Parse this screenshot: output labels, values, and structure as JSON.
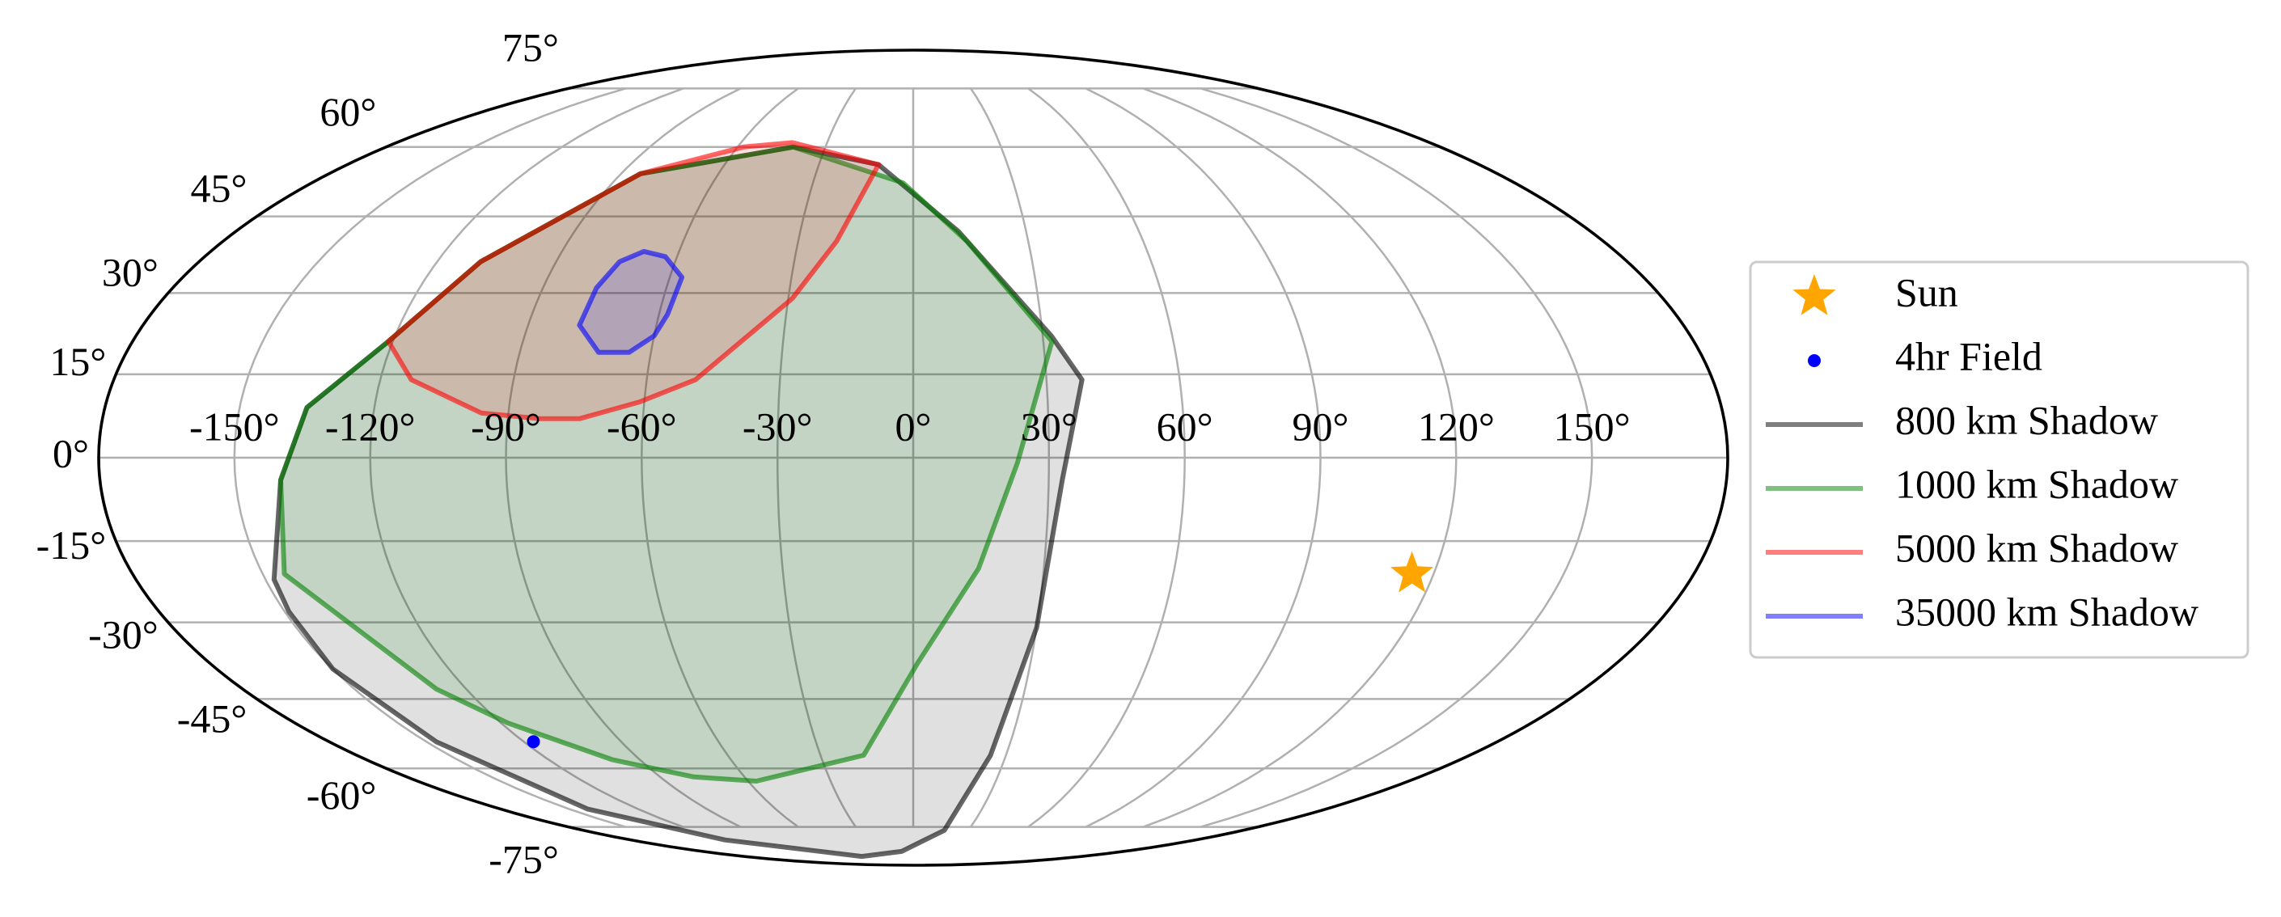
{
  "chart_data": {
    "type": "mollweide",
    "xticks": [
      {
        "value": -150,
        "label": "-150°"
      },
      {
        "value": -120,
        "label": "-120°"
      },
      {
        "value": -90,
        "label": "-90°"
      },
      {
        "value": -60,
        "label": "-60°"
      },
      {
        "value": -30,
        "label": "-30°"
      },
      {
        "value": 0,
        "label": "0°"
      },
      {
        "value": 30,
        "label": "30°"
      },
      {
        "value": 60,
        "label": "60°"
      },
      {
        "value": 90,
        "label": "90°"
      },
      {
        "value": 120,
        "label": "120°"
      },
      {
        "value": 150,
        "label": "150°"
      }
    ],
    "yticks": [
      {
        "value": -75,
        "label": "-75°"
      },
      {
        "value": -60,
        "label": "-60°"
      },
      {
        "value": -45,
        "label": "-45°"
      },
      {
        "value": -30,
        "label": "-30°"
      },
      {
        "value": -15,
        "label": "-15°"
      },
      {
        "value": 0,
        "label": "0°"
      },
      {
        "value": 15,
        "label": "15°"
      },
      {
        "value": 30,
        "label": "30°"
      },
      {
        "value": 45,
        "label": "45°"
      },
      {
        "value": 60,
        "label": "60°"
      },
      {
        "value": 75,
        "label": "75°"
      }
    ],
    "grid": true,
    "legend": "right",
    "series": [
      {
        "name": "Sun",
        "color": "orange",
        "marker": "star",
        "x": [
          115
        ],
        "y": [
          -21
        ]
      },
      {
        "name": "4hr Field",
        "color": "blue",
        "marker": "dot",
        "x": [
          -117
        ],
        "y": [
          -54
        ]
      },
      {
        "name": "800 km Shadow",
        "color": "black",
        "x": [
          -121,
          -109,
          -84,
          -41,
          -11,
          12,
          32,
          38,
          33,
          30,
          25,
          17,
          -10,
          -55,
          -120,
          -142,
          -147,
          -150,
          -149,
          -148,
          -140,
          -135
        ],
        "y": [
          21,
          36,
          54,
          60,
          56,
          42,
          22,
          14,
          -4,
          -31,
          -57,
          -76,
          -83,
          -85,
          -79,
          -70,
          -54,
          -39,
          -28,
          -22,
          -4,
          9
        ]
      },
      {
        "name": "1000 km Shadow",
        "color": "green",
        "x": [
          -121,
          -109,
          -84,
          -41,
          -3,
          14,
          32,
          23,
          15,
          1,
          -16,
          -57,
          -78,
          -99,
          -118,
          -128,
          -145,
          -140,
          -135
        ],
        "y": [
          21,
          36,
          54,
          60,
          52,
          40,
          21,
          -1,
          -20,
          -38,
          -57,
          -63,
          -62,
          -58,
          -50,
          -43,
          -21,
          -4,
          9
        ]
      },
      {
        "name": "5000 km Shadow",
        "color": "red",
        "x": [
          -121,
          -109,
          -84,
          -58,
          -42,
          -11,
          -20,
          -29,
          -49,
          -61,
          -74,
          -83,
          -96,
          -113
        ],
        "y": [
          21,
          36,
          54,
          60,
          61,
          56,
          40,
          29,
          14,
          10,
          7,
          7,
          8,
          14
        ]
      },
      {
        "name": "35000 km Shadow",
        "color": "blue",
        "x": [
          -78,
          -77,
          -74,
          -69,
          -63,
          -57,
          -58,
          -60,
          -65,
          -72
        ],
        "y": [
          24,
          31,
          36,
          38,
          37,
          33,
          26,
          22,
          19,
          19
        ]
      }
    ]
  }
}
